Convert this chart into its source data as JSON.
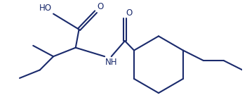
{
  "bg_color": "#ffffff",
  "line_color": "#1a2a6c",
  "text_color": "#1a2a6c",
  "line_width": 1.5,
  "font_size": 8.5,
  "figsize": [
    3.52,
    1.52
  ],
  "dpi": 100,
  "xlim": [
    0.0,
    3.52
  ],
  "ylim": [
    0.0,
    1.52
  ]
}
